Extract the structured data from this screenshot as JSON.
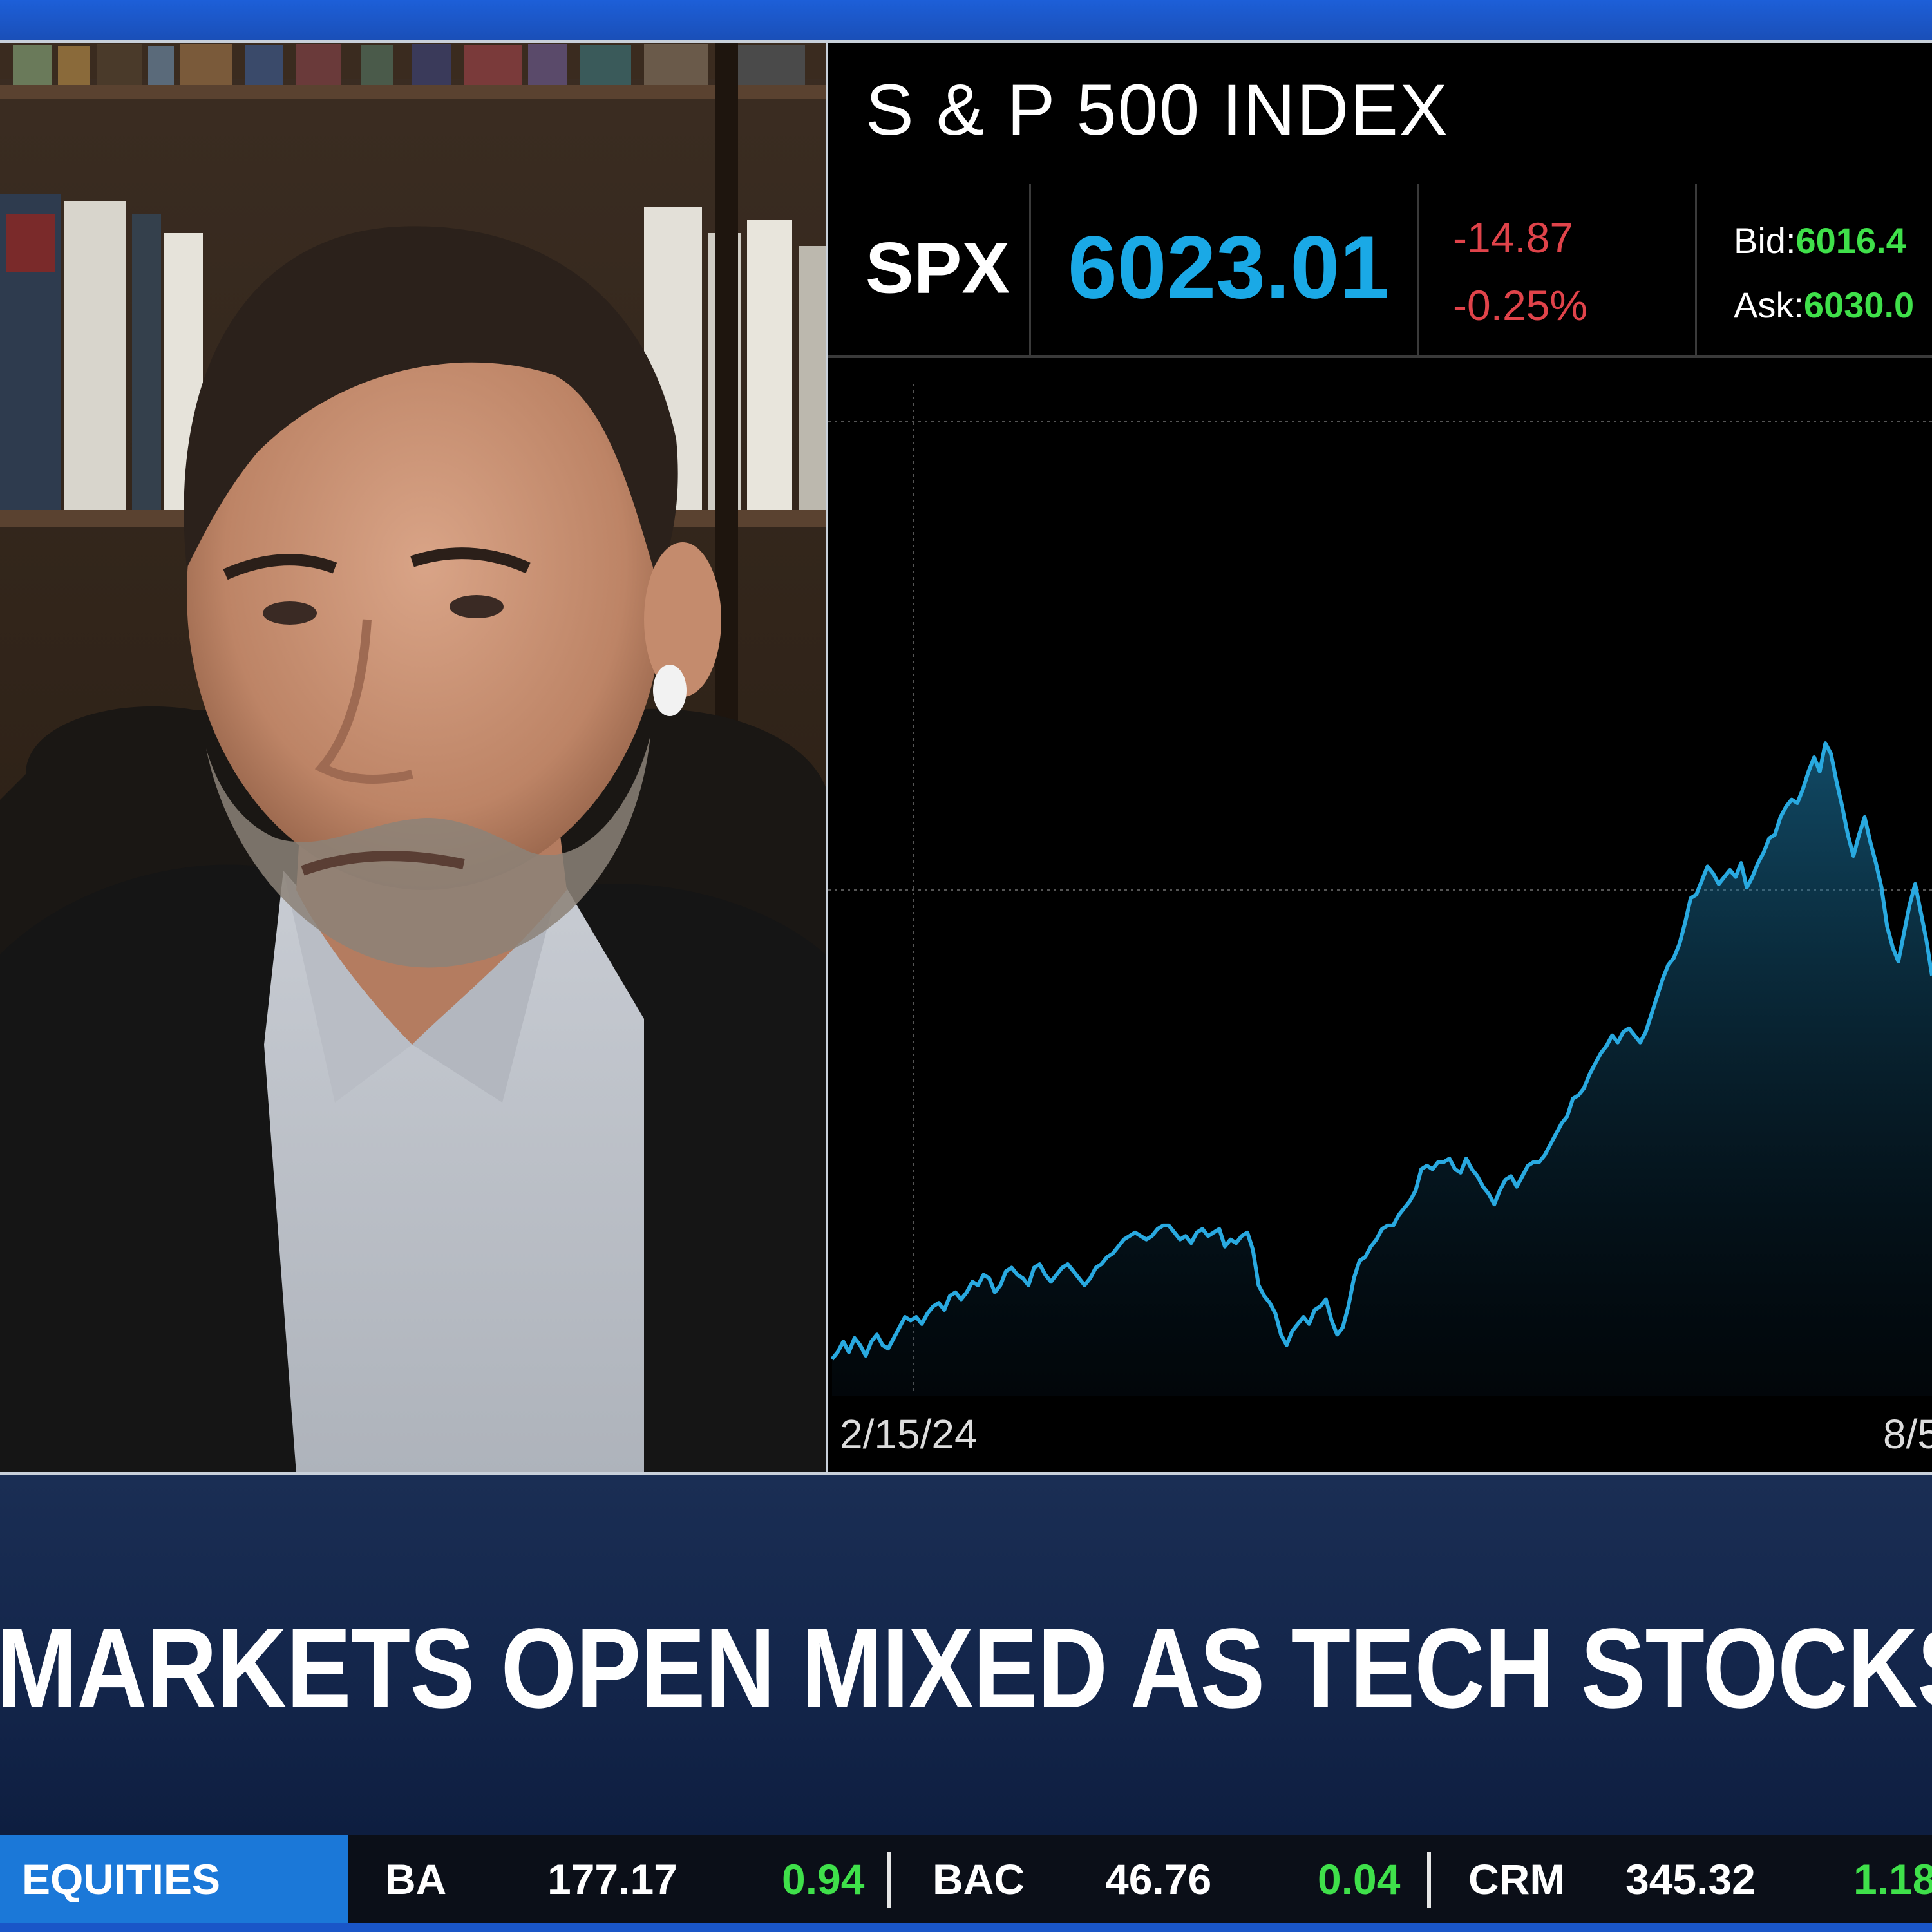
{
  "chart": {
    "title": "S & P 500 INDEX",
    "symbol": "SPX",
    "last": "6023.01",
    "change": "-14.87",
    "change_pct": "-0.25%",
    "bid_label": "Bid:",
    "bid_value": "6016.4",
    "ask_label": "Ask:",
    "ask_value": "6030.0",
    "line_color": "#29a9e0",
    "change_color": "#e0434a",
    "quote_color": "#3fe04a"
  },
  "chart_data": {
    "type": "area",
    "x_labels": [
      "2/15/24",
      "8/5"
    ],
    "series": [
      {
        "values": [
          0.01,
          0.03,
          0.06,
          0.03,
          0.07,
          0.05,
          0.02,
          0.06,
          0.08,
          0.05,
          0.04,
          0.07,
          0.1,
          0.13,
          0.12,
          0.13,
          0.11,
          0.14,
          0.16,
          0.17,
          0.15,
          0.19,
          0.2,
          0.18,
          0.2,
          0.23,
          0.22,
          0.25,
          0.24,
          0.2,
          0.22,
          0.26,
          0.27,
          0.25,
          0.24,
          0.22,
          0.27,
          0.28,
          0.25,
          0.23,
          0.25,
          0.27,
          0.28,
          0.26,
          0.24,
          0.22,
          0.24,
          0.27,
          0.28,
          0.3,
          0.31,
          0.33,
          0.35,
          0.36,
          0.37,
          0.36,
          0.35,
          0.36,
          0.38,
          0.39,
          0.39,
          0.37,
          0.35,
          0.36,
          0.34,
          0.37,
          0.38,
          0.36,
          0.37,
          0.38,
          0.33,
          0.35,
          0.34,
          0.36,
          0.37,
          0.32,
          0.22,
          0.19,
          0.17,
          0.14,
          0.08,
          0.05,
          0.09,
          0.11,
          0.13,
          0.11,
          0.15,
          0.16,
          0.18,
          0.12,
          0.08,
          0.1,
          0.16,
          0.24,
          0.29,
          0.3,
          0.33,
          0.35,
          0.38,
          0.39,
          0.39,
          0.42,
          0.44,
          0.46,
          0.49,
          0.55,
          0.56,
          0.55,
          0.57,
          0.57,
          0.58,
          0.55,
          0.54,
          0.58,
          0.55,
          0.53,
          0.5,
          0.48,
          0.45,
          0.49,
          0.52,
          0.53,
          0.5,
          0.53,
          0.56,
          0.57,
          0.57,
          0.59,
          0.62,
          0.65,
          0.68,
          0.7,
          0.75,
          0.76,
          0.78,
          0.82,
          0.85,
          0.88,
          0.9,
          0.93,
          0.91,
          0.94,
          0.95,
          0.93,
          0.91,
          0.94,
          0.99,
          1.04,
          1.09,
          1.13,
          1.15,
          1.19,
          1.25,
          1.32,
          1.33,
          1.37,
          1.41,
          1.39,
          1.36,
          1.38,
          1.4,
          1.38,
          1.42,
          1.35,
          1.38,
          1.42,
          1.45,
          1.49,
          1.5,
          1.55,
          1.58,
          1.6,
          1.59,
          1.63,
          1.68,
          1.72,
          1.68,
          1.76,
          1.73,
          1.65,
          1.58,
          1.5,
          1.44,
          1.5,
          1.55,
          1.48,
          1.42,
          1.35,
          1.24,
          1.18,
          1.14,
          1.22,
          1.3,
          1.36,
          1.28,
          1.2,
          1.1
        ]
      }
    ]
  },
  "headline": "MARKETS OPEN MIXED AS TECH STOCKS WEIGH",
  "ticker": {
    "category": "EQUITIES",
    "items": [
      {
        "symbol": "BA",
        "price": "177.17",
        "change": "0.94"
      },
      {
        "symbol": "BAC",
        "price": "46.76",
        "change": "0.04"
      },
      {
        "symbol": "CRM",
        "price": "345.32",
        "change": "1.18"
      }
    ]
  }
}
